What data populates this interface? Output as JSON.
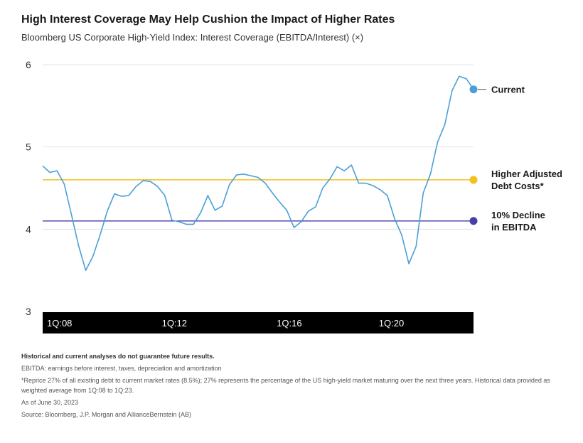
{
  "title": "High Interest Coverage May Help Cushion the Impact of Higher Rates",
  "subtitle": "Bloomberg US Corporate High-Yield Index: Interest Coverage (EBITDA/Interest) (×)",
  "notes": {
    "disclaimer": "Historical and current analyses do not guarantee future results.",
    "ebitda": "EBITDA: earnings before interest, taxes, depreciation and amortization",
    "reprice": "*Reprice 27% of all existing debt to current market rates (8.5%); 27% represents the percentage of the US high-yield market maturing over the next three years. Historical data provided as weighted average from 1Q:08 to 1Q:23.",
    "asof": "As of June 30, 2023",
    "source": "Source: Bloomberg, J.P. Morgan and AllianceBernstein (AB)"
  },
  "colors": {
    "series": "#4a9fd8",
    "current": "#4a9fd8",
    "higher_adjusted": "#f2c11d",
    "decline": "#4a3ea8",
    "axis_band": "#000000"
  },
  "chart_data": {
    "type": "line",
    "ylim": [
      3,
      6
    ],
    "yticks": [
      "6",
      "5",
      "4",
      "3"
    ],
    "xticks": [
      "1Q:08",
      "1Q:12",
      "1Q:16",
      "1Q:20"
    ],
    "series": [
      {
        "values": [
          4.77,
          4.69,
          4.71,
          4.55,
          4.18,
          3.8,
          3.5,
          3.67,
          3.93,
          4.22,
          4.43,
          4.4,
          4.41,
          4.52,
          4.59,
          4.58,
          4.52,
          4.41,
          4.11,
          4.09,
          4.06,
          4.06,
          4.2,
          4.41,
          4.23,
          4.28,
          4.54,
          4.66,
          4.67,
          4.65,
          4.63,
          4.56,
          4.44,
          4.33,
          4.23,
          4.02,
          4.09,
          4.22,
          4.27,
          4.5,
          4.61,
          4.76,
          4.71,
          4.78,
          4.56,
          4.56,
          4.53,
          4.48,
          4.41,
          4.13,
          3.93,
          3.58,
          3.79,
          4.44,
          4.67,
          5.06,
          5.27,
          5.68,
          5.86,
          5.83,
          5.7
        ]
      }
    ],
    "reference_lines": [
      {
        "label_line1": "Higher Adjusted",
        "label_line2": "Debt Costs*",
        "value": 4.6,
        "color": "#f2c11d"
      },
      {
        "label_line1": "10% Decline",
        "label_line2": "in EBITDA",
        "value": 4.1,
        "color": "#4a3ea8"
      }
    ],
    "current": {
      "label": "Current",
      "value": 5.7,
      "color": "#4a9fd8"
    },
    "grid": true
  }
}
